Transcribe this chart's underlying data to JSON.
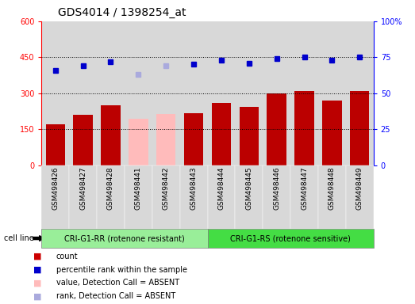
{
  "title": "GDS4014 / 1398254_at",
  "samples": [
    "GSM498426",
    "GSM498427",
    "GSM498428",
    "GSM498441",
    "GSM498442",
    "GSM498443",
    "GSM498444",
    "GSM498445",
    "GSM498446",
    "GSM498447",
    "GSM498448",
    "GSM498449"
  ],
  "bar_values": [
    170,
    210,
    248,
    193,
    213,
    215,
    258,
    243,
    298,
    308,
    268,
    308
  ],
  "bar_colors": [
    "#bb0000",
    "#bb0000",
    "#bb0000",
    "#ffbbbb",
    "#ffbbbb",
    "#bb0000",
    "#bb0000",
    "#bb0000",
    "#bb0000",
    "#bb0000",
    "#bb0000",
    "#bb0000"
  ],
  "rank_values_pct": [
    66,
    69,
    72,
    63,
    69,
    70,
    73,
    71,
    74,
    75,
    73,
    75
  ],
  "rank_colors": [
    "#0000cc",
    "#0000cc",
    "#0000cc",
    "#aaaadd",
    "#aaaadd",
    "#0000cc",
    "#0000cc",
    "#0000cc",
    "#0000cc",
    "#0000cc",
    "#0000cc",
    "#0000cc"
  ],
  "absent_detection": [
    false,
    false,
    false,
    true,
    true,
    false,
    false,
    false,
    false,
    false,
    false,
    false
  ],
  "group1_label": "CRI-G1-RR (rotenone resistant)",
  "group2_label": "CRI-G1-RS (rotenone sensitive)",
  "group1_count": 6,
  "group2_count": 6,
  "ylim_left": [
    0,
    600
  ],
  "ylim_right": [
    0,
    100
  ],
  "yticks_left": [
    0,
    150,
    300,
    450,
    600
  ],
  "yticks_right": [
    0,
    25,
    50,
    75,
    100
  ],
  "grid_lines": [
    150,
    300,
    450
  ],
  "cell_line_label": "cell line",
  "legend_items": [
    {
      "label": "count",
      "color": "#cc0000"
    },
    {
      "label": "percentile rank within the sample",
      "color": "#0000cc"
    },
    {
      "label": "value, Detection Call = ABSENT",
      "color": "#ffbbbb"
    },
    {
      "label": "rank, Detection Call = ABSENT",
      "color": "#aaaadd"
    }
  ],
  "col_bg_color": "#d8d8d8",
  "group1_color": "#99ee99",
  "group2_color": "#44dd44",
  "title_fontsize": 10,
  "label_fontsize": 6.5,
  "tick_fontsize": 7
}
